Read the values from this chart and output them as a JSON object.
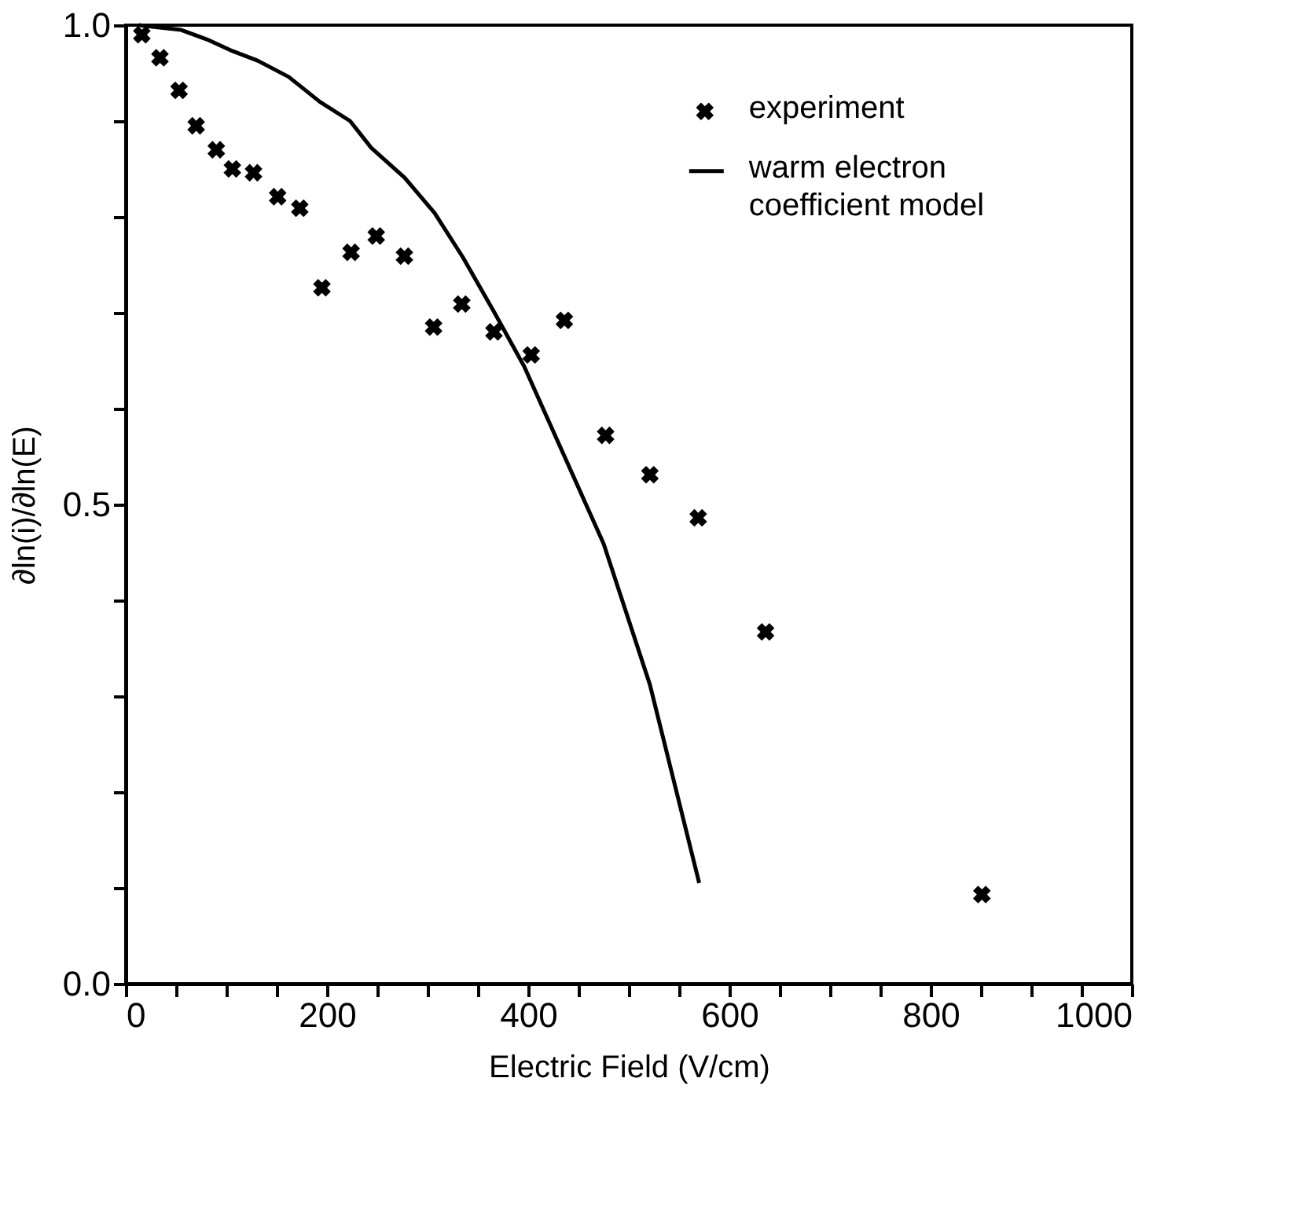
{
  "chart_data": {
    "type": "scatter",
    "xlabel": "Electric Field (V/cm)",
    "ylabel": "∂ln(i)/∂ln(E)",
    "xlim": [
      0,
      1000
    ],
    "ylim": [
      0,
      1
    ],
    "xticks": [
      0,
      {
        "value": 50,
        "label": null
      },
      {
        "value": 100,
        "label": null
      },
      {
        "value": 150,
        "label": null
      },
      200,
      {
        "value": 250,
        "label": null
      },
      {
        "value": 300,
        "label": null
      },
      {
        "value": 350,
        "label": null
      },
      400,
      {
        "value": 450,
        "label": null
      },
      {
        "value": 500,
        "label": null
      },
      {
        "value": 550,
        "label": null
      },
      600,
      {
        "value": 650,
        "label": null
      },
      {
        "value": 700,
        "label": null
      },
      {
        "value": 750,
        "label": null
      },
      800,
      {
        "value": 850,
        "label": null
      },
      {
        "value": 900,
        "label": null
      },
      {
        "value": 950,
        "label": null
      },
      1000
    ],
    "yticks": [
      {
        "value": 0,
        "label": "0.0"
      },
      {
        "value": 0.1,
        "label": null
      },
      {
        "value": 0.2,
        "label": null
      },
      {
        "value": 0.3,
        "label": null
      },
      {
        "value": 0.4,
        "label": null
      },
      {
        "value": 0.5,
        "label": "0.5"
      },
      {
        "value": 0.6,
        "label": null
      },
      {
        "value": 0.7,
        "label": null
      },
      {
        "value": 0.8,
        "label": null
      },
      {
        "value": 0.9,
        "label": null
      },
      {
        "value": 1.0,
        "label": "1.0"
      }
    ],
    "grid": false,
    "legend": "top right",
    "series": [
      {
        "name": "experiment",
        "type": "scatter",
        "marker": "cross",
        "color": "#000000",
        "x": [
          16,
          34,
          53,
          70,
          90,
          106,
          127,
          151,
          173,
          195,
          224,
          249,
          277,
          306,
          334,
          366,
          403,
          436,
          477,
          521,
          569,
          636,
          851
        ],
        "values": [
          0.99,
          0.966,
          0.932,
          0.895,
          0.87,
          0.85,
          0.846,
          0.821,
          0.809,
          0.726,
          0.763,
          0.78,
          0.759,
          0.685,
          0.709,
          0.68,
          0.656,
          0.692,
          0.572,
          0.531,
          0.486,
          0.367,
          0.093
        ]
      },
      {
        "name": "warm electron\ncoefficient model",
        "type": "line",
        "line_style": "solid",
        "color": "#000000",
        "x": [
          13,
          30,
          55,
          81,
          106,
          131,
          162,
          193,
          223,
          244,
          277,
          307,
          335,
          366,
          396,
          475,
          521,
          570
        ],
        "values": [
          1.0,
          0.998,
          0.995,
          0.985,
          0.973,
          0.963,
          0.946,
          0.92,
          0.9,
          0.872,
          0.841,
          0.804,
          0.758,
          0.701,
          0.644,
          0.459,
          0.312,
          0.105
        ]
      }
    ]
  }
}
